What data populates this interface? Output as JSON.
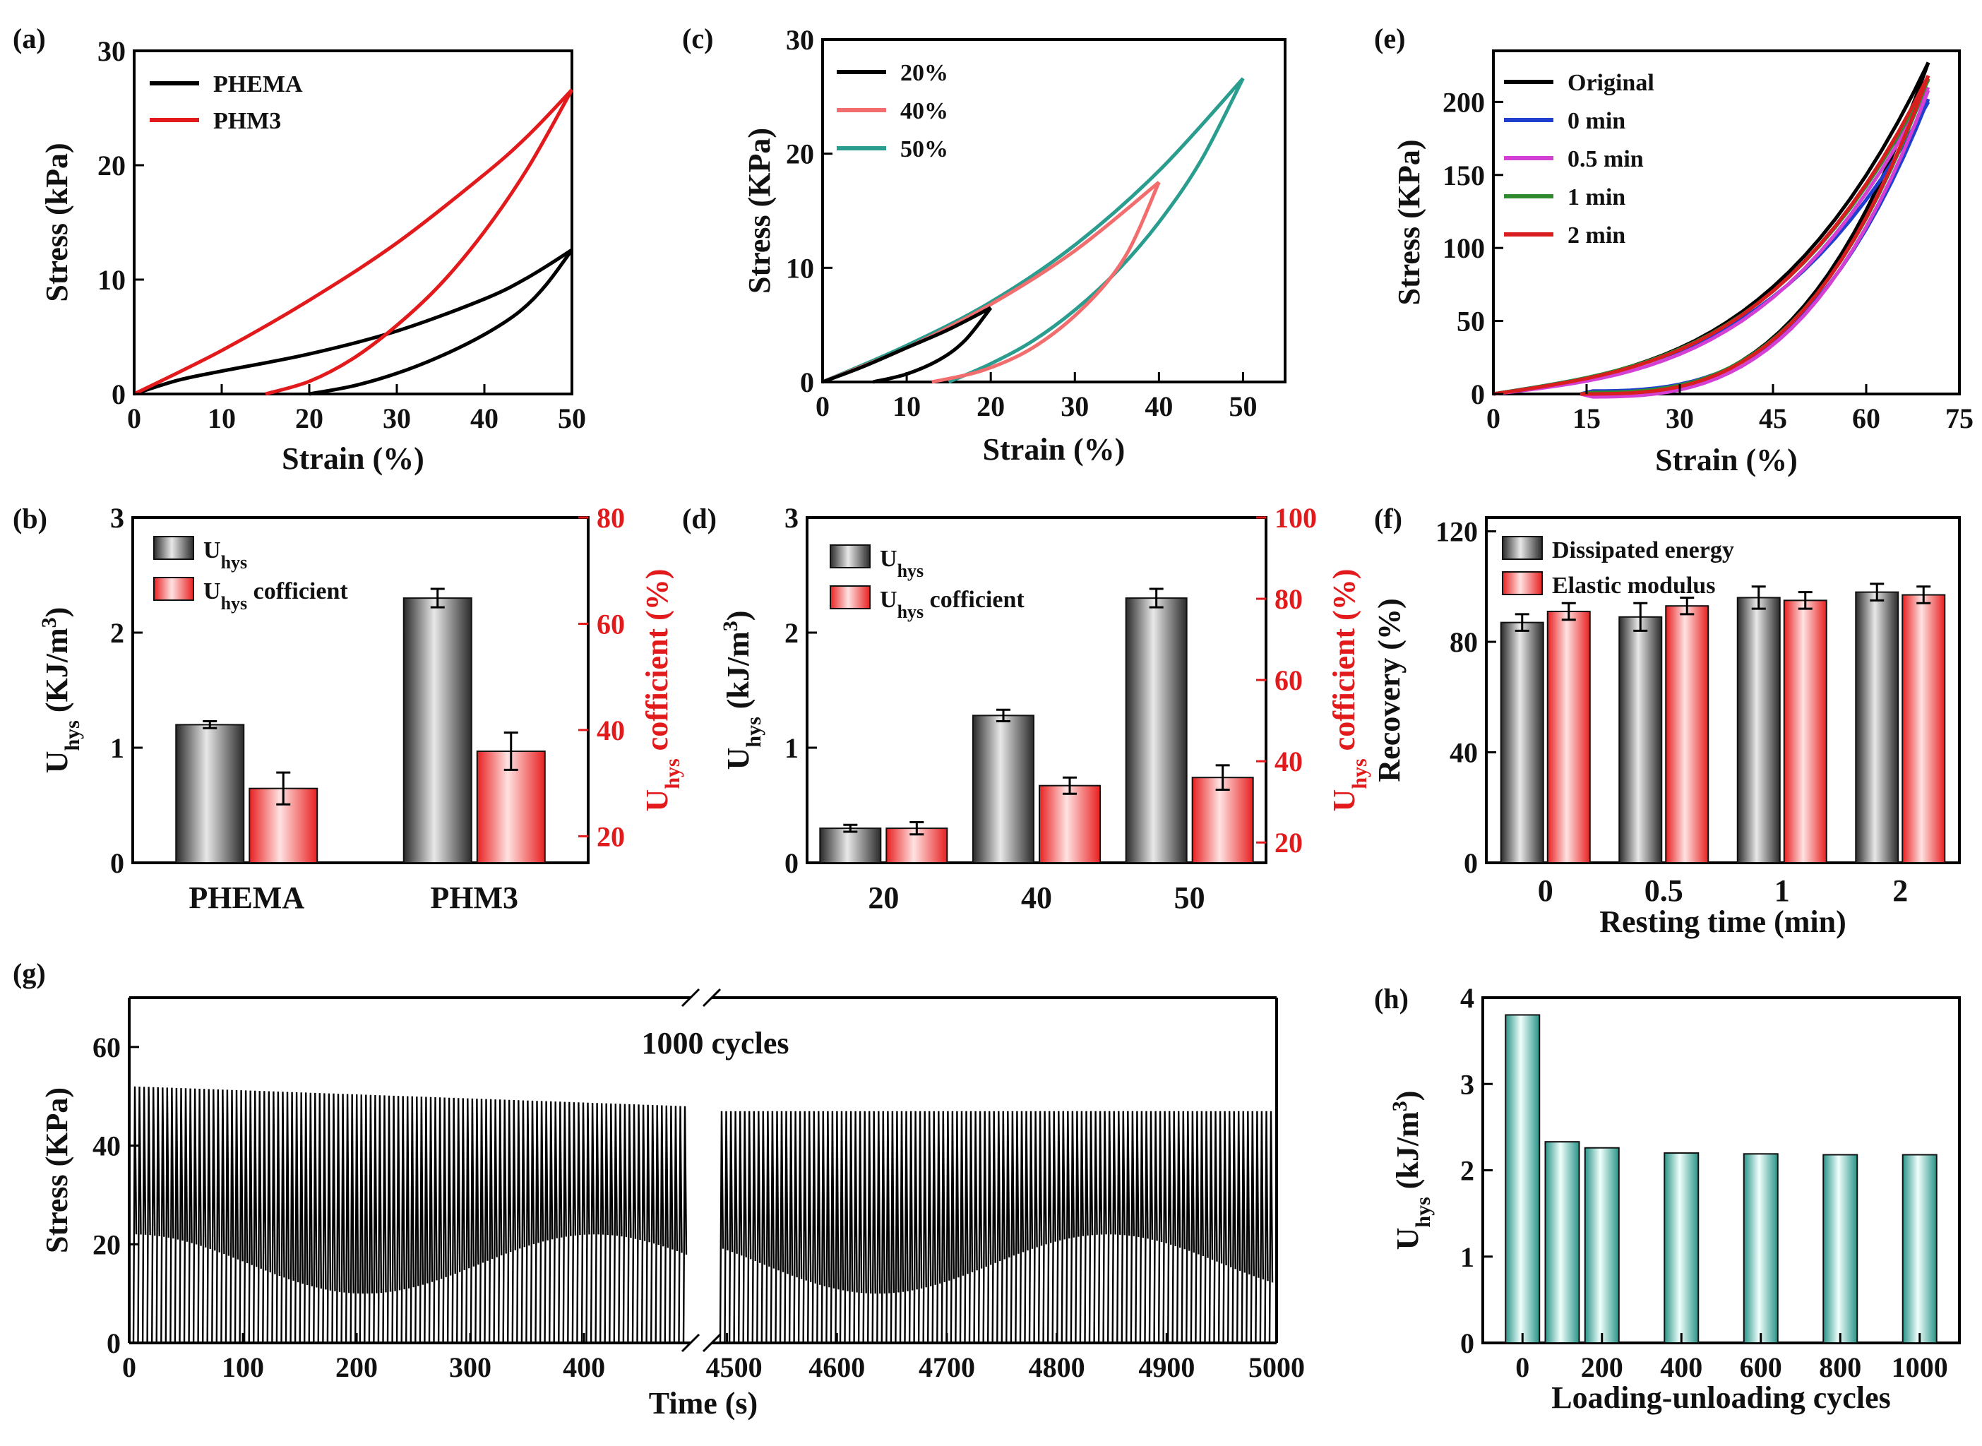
{
  "colors": {
    "black": "#000000",
    "red": "#e31a1c",
    "pink": "#f26d6d",
    "teal": "#2a9d8f",
    "blue": "#1f3fcf",
    "magenta": "#d43fd4",
    "green": "#2e8b2e",
    "darkred": "#d81e1e",
    "grayBar": "#4a4a4a",
    "redBar": "#ff9a9a",
    "tealBar": "#6cc7bd"
  },
  "chart_data": [
    {
      "id": "a",
      "panel_label": "(a)",
      "type": "line",
      "xlabel": "Strain (%)",
      "ylabel": "Stress (kPa)",
      "xlim": [
        0,
        50
      ],
      "ylim": [
        0,
        30
      ],
      "xticks": [
        "0",
        "10",
        "20",
        "30",
        "40",
        "50"
      ],
      "yticks": [
        "0",
        "10",
        "20",
        "30"
      ],
      "series": [
        {
          "name": "PHEMA",
          "color": "black",
          "loading": [
            [
              0,
              0
            ],
            [
              5,
              1.2
            ],
            [
              10,
              2
            ],
            [
              20,
              3.5
            ],
            [
              30,
              5.5
            ],
            [
              40,
              8.3
            ],
            [
              45,
              10.2
            ],
            [
              50,
              12.6
            ]
          ],
          "unloading": [
            [
              50,
              12.6
            ],
            [
              47,
              9.5
            ],
            [
              44,
              7.2
            ],
            [
              40,
              5.2
            ],
            [
              35,
              3.3
            ],
            [
              30,
              1.8
            ],
            [
              25,
              0.7
            ],
            [
              20,
              0
            ]
          ]
        },
        {
          "name": "PHM3",
          "color": "red",
          "loading": [
            [
              0,
              0
            ],
            [
              10,
              3.8
            ],
            [
              20,
              8.2
            ],
            [
              30,
              13.2
            ],
            [
              40,
              19.2
            ],
            [
              45,
              22.6
            ],
            [
              50,
              26.6
            ]
          ],
          "unloading": [
            [
              50,
              26.6
            ],
            [
              45,
              19.8
            ],
            [
              40,
              14.2
            ],
            [
              35,
              9.6
            ],
            [
              30,
              6
            ],
            [
              25,
              3.1
            ],
            [
              20,
              1.1
            ],
            [
              15,
              0
            ]
          ]
        }
      ]
    },
    {
      "id": "b",
      "panel_label": "(b)",
      "type": "bar",
      "categories": [
        "PHEMA",
        "PHM3"
      ],
      "ylabel_left": "Uhys (KJ/m3)",
      "ylabel_right": "Uhys cofficient (%)",
      "ylim_left": [
        0,
        3
      ],
      "ylim_right": [
        15,
        80
      ],
      "yticks_left": [
        "0",
        "1",
        "2",
        "3"
      ],
      "yticks_right": [
        "20",
        "40",
        "60",
        "80"
      ],
      "series": [
        {
          "name": "Uhys",
          "axis": "left",
          "color": "grayBar",
          "values": [
            1.2,
            2.3
          ],
          "errors": [
            0.03,
            0.08
          ]
        },
        {
          "name": "Uhys cofficient",
          "axis": "right",
          "color": "redBar",
          "values": [
            29,
            36
          ],
          "errors": [
            3,
            3.5
          ]
        }
      ]
    },
    {
      "id": "c",
      "panel_label": "(c)",
      "type": "line",
      "xlabel": "Strain (%)",
      "ylabel": "Stress (KPa)",
      "xlim": [
        0,
        55
      ],
      "ylim": [
        0,
        30
      ],
      "xticks": [
        "0",
        "10",
        "20",
        "30",
        "40",
        "50"
      ],
      "yticks": [
        "0",
        "10",
        "20",
        "30"
      ],
      "series": [
        {
          "name": "20%",
          "color": "black",
          "loading": [
            [
              0,
              0
            ],
            [
              5,
              1.4
            ],
            [
              10,
              3
            ],
            [
              15,
              4.6
            ],
            [
              20,
              6.5
            ]
          ],
          "unloading": [
            [
              20,
              6.5
            ],
            [
              17,
              3.7
            ],
            [
              14,
              2
            ],
            [
              10,
              0.7
            ],
            [
              6,
              0
            ]
          ]
        },
        {
          "name": "40%",
          "color": "pink",
          "loading": [
            [
              0,
              0
            ],
            [
              10,
              3
            ],
            [
              20,
              6.8
            ],
            [
              30,
              11.5
            ],
            [
              40,
              17.5
            ]
          ],
          "unloading": [
            [
              40,
              17.5
            ],
            [
              36,
              11
            ],
            [
              31,
              6.5
            ],
            [
              25,
              3
            ],
            [
              19,
              1
            ],
            [
              13,
              0
            ]
          ]
        },
        {
          "name": "50%",
          "color": "teal",
          "loading": [
            [
              0,
              0
            ],
            [
              10,
              3.2
            ],
            [
              20,
              7
            ],
            [
              30,
              12
            ],
            [
              40,
              18.5
            ],
            [
              50,
              26.6
            ]
          ],
          "unloading": [
            [
              50,
              26.6
            ],
            [
              45,
              19.4
            ],
            [
              40,
              14
            ],
            [
              35,
              9.7
            ],
            [
              30,
              6.3
            ],
            [
              25,
              3.6
            ],
            [
              20,
              1.6
            ],
            [
              15,
              0
            ]
          ]
        }
      ]
    },
    {
      "id": "d",
      "panel_label": "(d)",
      "type": "bar",
      "categories": [
        "20",
        "40",
        "50"
      ],
      "ylabel_left": "Uhys (kJ/m3)",
      "ylabel_right": "Uhys cofficient (%)",
      "ylim_left": [
        0,
        3
      ],
      "ylim_right": [
        15,
        100
      ],
      "yticks_left": [
        "0",
        "1",
        "2",
        "3"
      ],
      "yticks_right": [
        "20",
        "40",
        "60",
        "80",
        "100"
      ],
      "series": [
        {
          "name": "Uhys",
          "axis": "left",
          "color": "grayBar",
          "values": [
            0.3,
            1.28,
            2.3
          ],
          "errors": [
            0.03,
            0.05,
            0.08
          ]
        },
        {
          "name": "Uhys cofficient",
          "axis": "right",
          "color": "redBar",
          "values": [
            23.5,
            34,
            36
          ],
          "errors": [
            1.5,
            2,
            3
          ]
        }
      ]
    },
    {
      "id": "e",
      "panel_label": "(e)",
      "type": "line",
      "xlabel": "Strain (%)",
      "ylabel": "Stress (KPa)",
      "xlim": [
        0,
        75
      ],
      "ylim": [
        0,
        235
      ],
      "xticks": [
        "0",
        "15",
        "30",
        "45",
        "60",
        "75"
      ],
      "yticks": [
        "0",
        "50",
        "100",
        "150",
        "200"
      ],
      "series": [
        {
          "name": "Original",
          "color": "black",
          "final": 227,
          "offset": 0
        },
        {
          "name": "0 min",
          "color": "blue",
          "final": 200,
          "offset": 2
        },
        {
          "name": "0.5 min",
          "color": "magenta",
          "final": 210,
          "offset": -2
        },
        {
          "name": "1 min",
          "color": "green",
          "final": 215,
          "offset": 1
        },
        {
          "name": "2 min",
          "color": "darkred",
          "final": 218,
          "offset": 0
        }
      ]
    },
    {
      "id": "f",
      "panel_label": "(f)",
      "type": "bar",
      "categories": [
        "0",
        "0.5",
        "1",
        "2"
      ],
      "xlabel": "Resting time (min)",
      "ylabel": "Recovery (%)",
      "ylim": [
        0,
        125
      ],
      "yticks": [
        "0",
        "40",
        "80",
        "120"
      ],
      "series": [
        {
          "name": "Dissipated energy",
          "color": "grayBar",
          "values": [
            87,
            89,
            96,
            98
          ],
          "errors": [
            3,
            5,
            4,
            3
          ]
        },
        {
          "name": "Elastic modulus",
          "color": "redBar",
          "values": [
            91,
            93,
            95,
            97
          ],
          "errors": [
            3,
            3,
            3,
            3
          ]
        }
      ]
    },
    {
      "id": "g",
      "panel_label": "(g)",
      "type": "line",
      "xlabel": "Time (s)",
      "ylabel": "Stress (KPa)",
      "annotation": "1000 cycles",
      "ylim": [
        0,
        70
      ],
      "yticks": [
        "0",
        "20",
        "40",
        "60"
      ],
      "segments": [
        {
          "xlim": [
            0,
            490
          ],
          "xticks": [
            "0",
            "100",
            "200",
            "300",
            "400"
          ],
          "peak_start": 52,
          "peak_end": 48
        },
        {
          "xlim": [
            4490,
            5000
          ],
          "xticks": [
            "4500",
            "4600",
            "4700",
            "4800",
            "4900",
            "5000"
          ],
          "peak_start": 47,
          "peak_end": 47
        }
      ]
    },
    {
      "id": "h",
      "panel_label": "(h)",
      "type": "bar",
      "categories": [
        "0",
        "200",
        "400",
        "600",
        "800",
        "1000"
      ],
      "xlabel": "Loading-unloading cycles",
      "ylabel": "Uhys (kJ/m3)",
      "ylim": [
        0,
        4
      ],
      "yticks": [
        "0",
        "1",
        "2",
        "3",
        "4"
      ],
      "bars": [
        {
          "x": 0,
          "value": 3.8
        },
        {
          "x": 100,
          "value": 2.33
        },
        {
          "x": 200,
          "value": 2.26
        },
        {
          "x": 400,
          "value": 2.2
        },
        {
          "x": 600,
          "value": 2.19
        },
        {
          "x": 800,
          "value": 2.18
        },
        {
          "x": 1000,
          "value": 2.18
        }
      ]
    }
  ]
}
